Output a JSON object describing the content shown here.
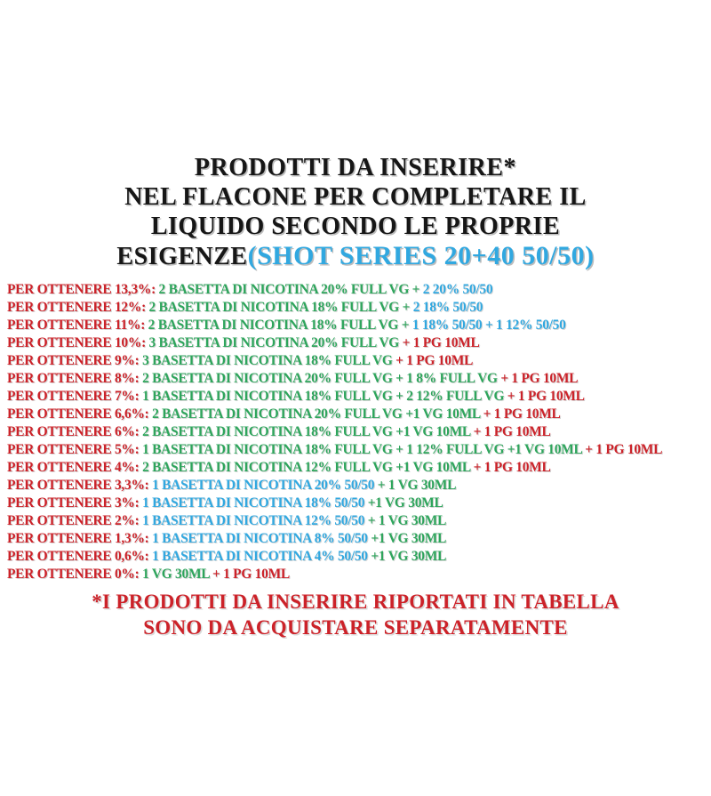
{
  "colors": {
    "red": "#cc2229",
    "green": "#2ea55c",
    "blue": "#31a8e0",
    "black": "#161616"
  },
  "title": {
    "line1": "PRODOTTI DA INSERIRE*",
    "line2": "NEL FLACONE PER COMPLETARE IL",
    "line3": "LIQUIDO SECONDO LE PROPRIE",
    "line4_black": "ESIGENZE",
    "line4_blue": "(SHOT SERIES 20+40 50/50)"
  },
  "recipes": [
    {
      "target": "13,3%",
      "segments": [
        {
          "text": "PER OTTENERE 13,3%:",
          "color": "red"
        },
        {
          "text": "2 BASETTA DI NICOTINA 20% FULL VG +",
          "color": "green"
        },
        {
          "text": "2 20% 50/50",
          "color": "blue"
        }
      ]
    },
    {
      "target": "12%",
      "segments": [
        {
          "text": "PER OTTENERE 12%:",
          "color": "red"
        },
        {
          "text": "2 BASETTA DI NICOTINA 18% FULL VG +",
          "color": "green"
        },
        {
          "text": "2 18% 50/50",
          "color": "blue"
        }
      ]
    },
    {
      "target": "11%",
      "segments": [
        {
          "text": "PER OTTENERE 11%:",
          "color": "red"
        },
        {
          "text": "2 BASETTA DI NICOTINA 18% FULL VG +",
          "color": "green"
        },
        {
          "text": "1 18% 50/50 + 1 12% 50/50",
          "color": "blue"
        }
      ]
    },
    {
      "target": "10%",
      "segments": [
        {
          "text": "PER OTTENERE 10%:",
          "color": "red"
        },
        {
          "text": "3 BASETTA DI NICOTINA 20% FULL VG",
          "color": "green"
        },
        {
          "text": "+ 1 PG 10ML",
          "color": "red"
        }
      ]
    },
    {
      "target": "9%",
      "segments": [
        {
          "text": "PER OTTENERE 9%:",
          "color": "red"
        },
        {
          "text": "3 BASETTA DI NICOTINA 18% FULL VG",
          "color": "green"
        },
        {
          "text": "+ 1 PG 10ML",
          "color": "red"
        }
      ]
    },
    {
      "target": "8%",
      "segments": [
        {
          "text": "PER OTTENERE 8%:",
          "color": "red"
        },
        {
          "text": "2 BASETTA DI NICOTINA 20% FULL VG + 1 8% FULL VG",
          "color": "green"
        },
        {
          "text": "+ 1 PG 10ML",
          "color": "red"
        }
      ]
    },
    {
      "target": "7%",
      "segments": [
        {
          "text": "PER OTTENERE 7%:",
          "color": "red"
        },
        {
          "text": "1 BASETTA DI NICOTINA 18% FULL VG + 2 12% FULL VG",
          "color": "green"
        },
        {
          "text": "+ 1 PG 10ML",
          "color": "red"
        }
      ]
    },
    {
      "target": "6,6%",
      "segments": [
        {
          "text": "PER OTTENERE 6,6%:",
          "color": "red"
        },
        {
          "text": "2 BASETTA DI NICOTINA 20% FULL VG +1 VG 10ML",
          "color": "green"
        },
        {
          "text": "+ 1 PG 10ML",
          "color": "red"
        }
      ]
    },
    {
      "target": "6%",
      "segments": [
        {
          "text": "PER OTTENERE 6%:",
          "color": "red"
        },
        {
          "text": "2 BASETTA DI NICOTINA 18% FULL VG +1 VG 10ML",
          "color": "green"
        },
        {
          "text": "+ 1 PG 10ML",
          "color": "red"
        }
      ]
    },
    {
      "target": "5%",
      "segments": [
        {
          "text": "PER OTTENERE 5%:",
          "color": "red"
        },
        {
          "text": "1 BASETTA DI NICOTINA 18% FULL VG + 1 12% FULL VG +1 VG 10ML",
          "color": "green"
        },
        {
          "text": "+ 1 PG 10ML",
          "color": "red"
        }
      ]
    },
    {
      "target": "4%",
      "segments": [
        {
          "text": "PER OTTENERE 4%:",
          "color": "red"
        },
        {
          "text": "2 BASETTA DI NICOTINA 12% FULL VG +1 VG 10ML",
          "color": "green"
        },
        {
          "text": "+ 1 PG 10ML",
          "color": "red"
        }
      ]
    },
    {
      "target": "3,3%",
      "segments": [
        {
          "text": "PER OTTENERE 3,3%:",
          "color": "red"
        },
        {
          "text": "1 BASETTA DI NICOTINA 20% 50/50",
          "color": "blue"
        },
        {
          "text": "+ 1 VG 30ML",
          "color": "green"
        }
      ]
    },
    {
      "target": "3%",
      "segments": [
        {
          "text": "PER OTTENERE 3%:",
          "color": "red"
        },
        {
          "text": "1 BASETTA DI NICOTINA 18% 50/50",
          "color": "blue"
        },
        {
          "text": "+1 VG 30ML",
          "color": "green"
        }
      ]
    },
    {
      "target": "2%",
      "segments": [
        {
          "text": "PER OTTENERE 2%:",
          "color": "red"
        },
        {
          "text": "1 BASETTA DI NICOTINA 12% 50/50",
          "color": "blue"
        },
        {
          "text": "+ 1 VG 30ML",
          "color": "green"
        }
      ]
    },
    {
      "target": "1,3%",
      "segments": [
        {
          "text": "PER OTTENERE 1,3%:",
          "color": "red"
        },
        {
          "text": "1 BASETTA DI NICOTINA 8% 50/50",
          "color": "blue"
        },
        {
          "text": "+1 VG 30ML",
          "color": "green"
        }
      ]
    },
    {
      "target": "0,6%",
      "segments": [
        {
          "text": "PER OTTENERE 0,6%:",
          "color": "red"
        },
        {
          "text": "1 BASETTA DI NICOTINA 4% 50/50",
          "color": "blue"
        },
        {
          "text": "+1 VG 30ML",
          "color": "green"
        }
      ]
    },
    {
      "target": "0%",
      "segments": [
        {
          "text": "PER OTTENERE 0%:",
          "color": "red"
        },
        {
          "text": "1 VG 30ML",
          "color": "green"
        },
        {
          "text": "+ 1 PG 10ML",
          "color": "red"
        }
      ]
    }
  ],
  "footer": {
    "line1": "*I PRODOTTI DA INSERIRE RIPORTATI IN TABELLA",
    "line2": "SONO DA ACQUISTARE SEPARATAMENTE"
  }
}
